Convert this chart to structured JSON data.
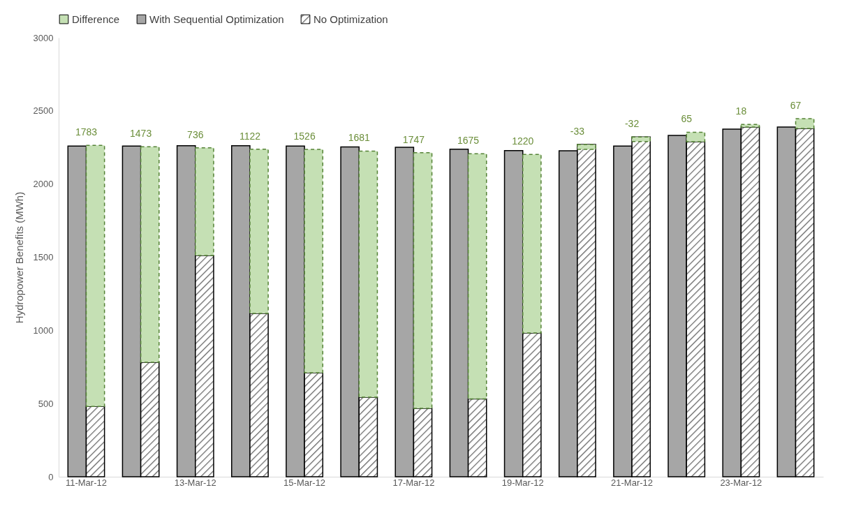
{
  "chart_data": {
    "type": "bar",
    "ylabel": "Hydropower Benefits (MWh)",
    "categories": [
      "11-Mar-12",
      null,
      "13-Mar-12",
      null,
      "15-Mar-12",
      null,
      "17-Mar-12",
      null,
      "19-Mar-12",
      null,
      "21-Mar-12",
      null,
      "23-Mar-12",
      null
    ],
    "ylim": [
      0,
      3000
    ],
    "yticks": [
      0,
      500,
      1000,
      1500,
      2000,
      2500,
      3000
    ],
    "grid": false,
    "legend": "top",
    "series": [
      {
        "name": "Difference",
        "color": "#c5e0b4",
        "base": [
          481,
          782,
          1512,
          1116,
          711,
          544,
          467,
          532,
          982,
          2270,
          2322,
          2289,
          2389,
          2380
        ],
        "values": [
          1783,
          1473,
          736,
          1122,
          1526,
          1681,
          1747,
          1675,
          1220,
          -33,
          -32,
          65,
          18,
          67
        ],
        "value_labels": [
          "1783",
          "1473",
          "736",
          "1122",
          "1526",
          "1681",
          "1747",
          "1675",
          "1220",
          "-33",
          "-32",
          "65",
          "18",
          "67"
        ]
      },
      {
        "name": "With Sequential Optimization",
        "color": "#a6a6a6",
        "values": [
          2260,
          2260,
          2262,
          2262,
          2260,
          2253,
          2251,
          2238,
          2229,
          2227,
          2260,
          2332,
          2375,
          2389
        ]
      },
      {
        "name": "No Optimization",
        "color": "#000000",
        "values": [
          481,
          782,
          1512,
          1116,
          711,
          544,
          467,
          532,
          982,
          2270,
          2322,
          2289,
          2389,
          2380
        ]
      }
    ]
  }
}
